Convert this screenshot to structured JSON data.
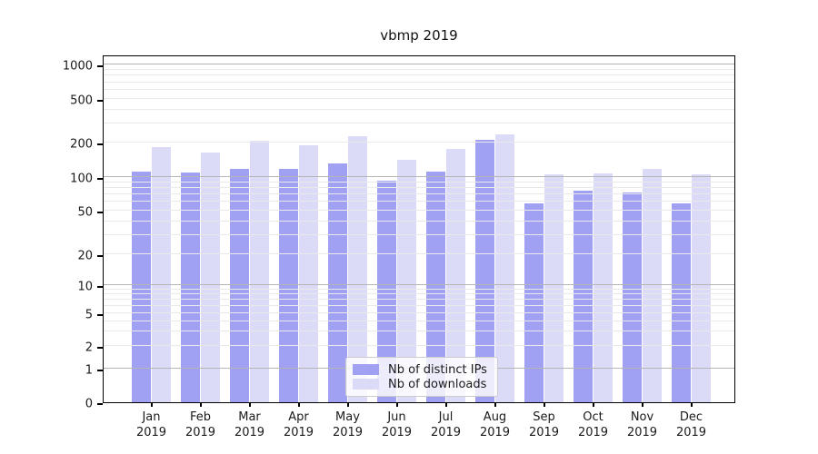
{
  "title": "vbmp 2019",
  "chart_data": {
    "type": "bar",
    "title": "vbmp 2019",
    "categories": [
      "Jan",
      "Feb",
      "Mar",
      "Apr",
      "May",
      "Jun",
      "Jul",
      "Aug",
      "Sep",
      "Oct",
      "Nov",
      "Dec"
    ],
    "x_tick_second_line": "2019",
    "series": [
      {
        "name": "Nb of distinct IPs",
        "color": "#a1a1f3",
        "values": [
          113,
          111,
          119,
          119,
          132,
          94,
          113,
          212,
          58,
          76,
          73,
          58
        ]
      },
      {
        "name": "Nb of downloads",
        "color": "#dbdbf8",
        "values": [
          185,
          165,
          208,
          190,
          230,
          143,
          176,
          240,
          107,
          109,
          118,
          107
        ]
      }
    ],
    "yticks": [
      0,
      1,
      2,
      5,
      10,
      20,
      50,
      100,
      200,
      500,
      1000
    ],
    "yscale": "symlog",
    "ylim": [
      0,
      1200
    ],
    "grid": true,
    "legend_position": "lower center"
  }
}
